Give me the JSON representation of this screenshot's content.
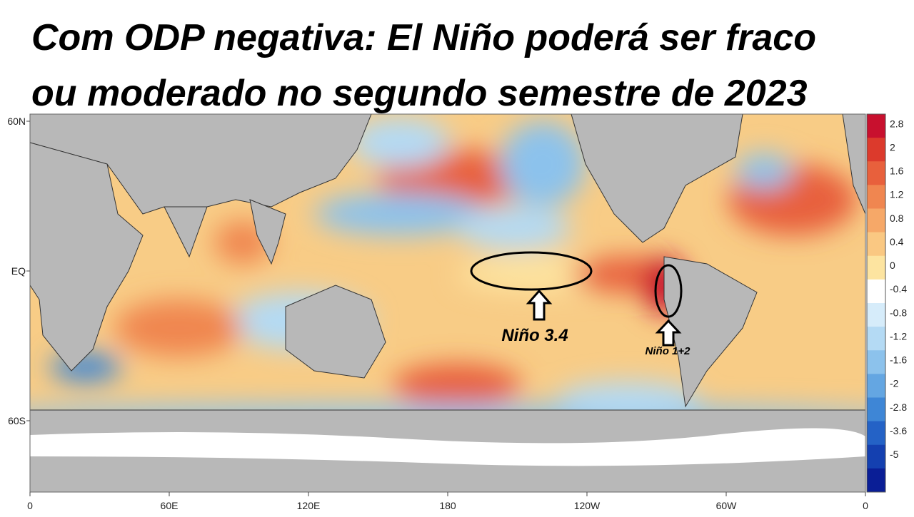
{
  "header": {
    "title_lines": [
      "Com ODP negativa: El Niño poderá ser fraco",
      "ou moderado no segundo semestre de 2023"
    ]
  },
  "map": {
    "lat_labels": [
      "60N",
      "EQ",
      "60S"
    ],
    "lon_labels": [
      "0",
      "60E",
      "120E",
      "180",
      "120W",
      "60W",
      "0"
    ],
    "annotations": [
      "Niño 3.4",
      "Niño 1+2"
    ]
  },
  "colorbar": {
    "levels": [
      2.8,
      2,
      1.6,
      1.2,
      0.8,
      0.4,
      0,
      -0.4,
      -0.8,
      -1.2,
      -1.6,
      -2,
      -2.8,
      -3.6,
      -5
    ],
    "colors": [
      "#c8102e",
      "#dc3a2c",
      "#e8603c",
      "#f08650",
      "#f6a868",
      "#fac882",
      "#fde4a0",
      "#ffffff",
      "#d6ecfa",
      "#b4daf4",
      "#8cc2ec",
      "#64a6e2",
      "#3e86d6",
      "#2462c6",
      "#1440b0",
      "#0a1e96"
    ]
  }
}
